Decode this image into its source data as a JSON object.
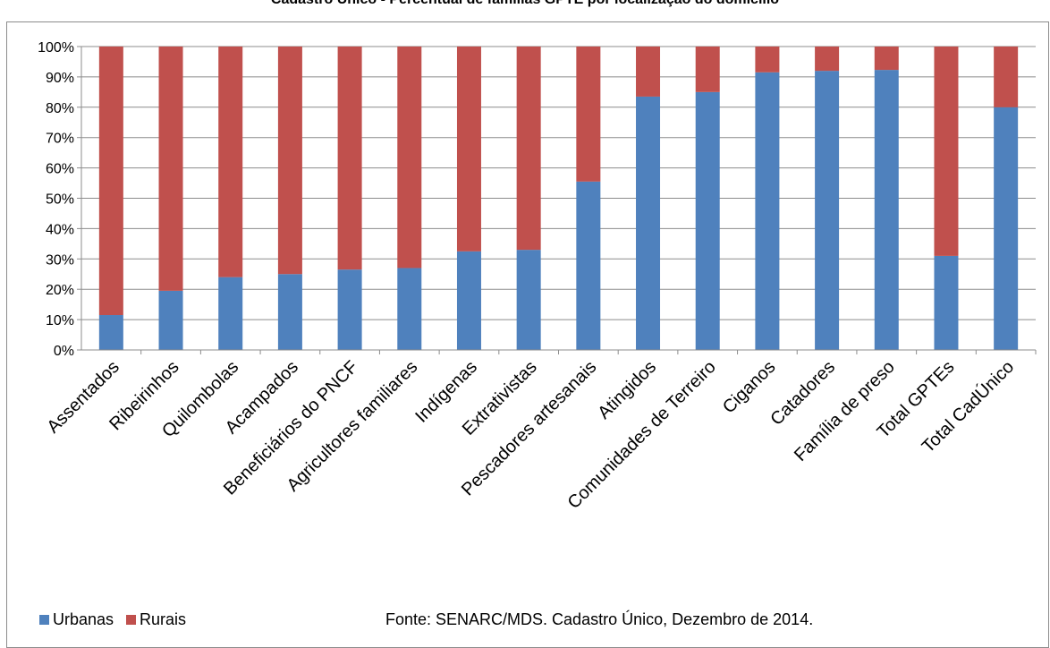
{
  "chart_data": {
    "type": "bar",
    "stacked": true,
    "title": "Cadastro Único - Percentual de famílias GPTE por localização do domicílio",
    "categories": [
      "Assentados",
      "Ribeirinhos",
      "Quilombolas",
      "Acampados",
      "Beneficiários do PNCF",
      "Agricultores familiares",
      "Indígenas",
      "Extrativistas",
      "Pescadores artesanais",
      "Atingidos",
      "Comunidades de Terreiro",
      "Ciganos",
      "Catadores",
      "Família de preso",
      "Total GPTEs",
      "Total CadÚnico"
    ],
    "series": [
      {
        "name": "Urbanas",
        "color": "#4f81bd",
        "values": [
          11.5,
          19.5,
          24,
          25,
          26.5,
          27,
          32.5,
          33,
          55.5,
          83.5,
          85,
          91.5,
          92,
          92.3,
          31,
          80
        ]
      },
      {
        "name": "Rurais",
        "color": "#c0504d",
        "values": [
          88.5,
          80.5,
          76,
          75,
          73.5,
          73,
          67.5,
          67,
          44.5,
          16.5,
          15,
          8.5,
          8,
          7.7,
          69,
          20
        ]
      }
    ],
    "ylim": [
      0,
      100
    ],
    "yticks": [
      "0%",
      "10%",
      "20%",
      "30%",
      "40%",
      "50%",
      "60%",
      "70%",
      "80%",
      "90%",
      "100%"
    ],
    "grid": true,
    "legend_position": "bottom-left",
    "source": "Fonte: SENARC/MDS. Cadastro Único, Dezembro de 2014."
  }
}
